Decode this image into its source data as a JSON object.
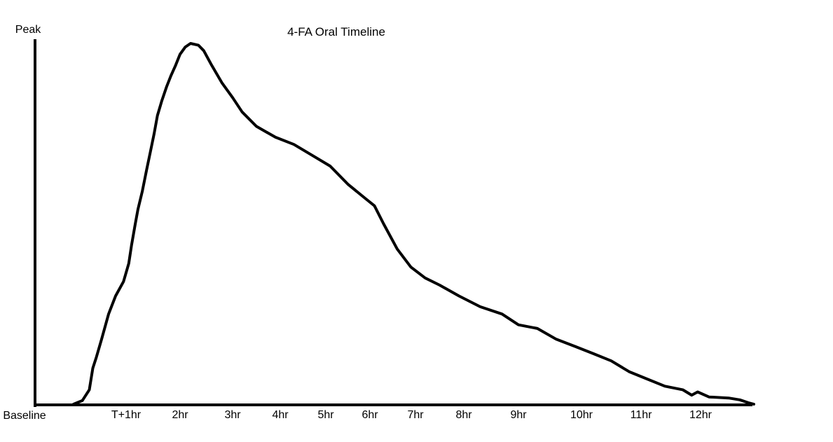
{
  "chart_data": {
    "type": "line",
    "title": "4-FA Oral Timeline",
    "ylabel_top": "Peak",
    "ylabel_bottom": "Baseline",
    "xlabel": "",
    "ylim": [
      0,
      100
    ],
    "grid": false,
    "legend": "none",
    "line_color": "#000000",
    "tick_labels": [
      "T+1hr",
      "2hr",
      "3hr",
      "4hr",
      "5hr",
      "6hr",
      "7hr",
      "8hr",
      "9hr",
      "10hr",
      "11hr",
      "12hr"
    ],
    "tick_hours": [
      1,
      2,
      3,
      4,
      5,
      6,
      7,
      8,
      9,
      10,
      11,
      12
    ],
    "series": [
      {
        "points": [
          [
            0.4,
            0
          ],
          [
            0.5,
            1
          ],
          [
            0.58,
            4
          ],
          [
            0.62,
            10
          ],
          [
            0.66,
            13
          ],
          [
            0.72,
            18
          ],
          [
            0.8,
            25
          ],
          [
            0.88,
            30
          ],
          [
            0.97,
            34
          ],
          [
            1.05,
            39
          ],
          [
            1.1,
            44
          ],
          [
            1.17,
            50
          ],
          [
            1.22,
            54
          ],
          [
            1.3,
            59
          ],
          [
            1.38,
            65
          ],
          [
            1.45,
            70
          ],
          [
            1.52,
            75
          ],
          [
            1.58,
            80
          ],
          [
            1.66,
            84
          ],
          [
            1.75,
            88
          ],
          [
            1.83,
            91
          ],
          [
            1.92,
            94
          ],
          [
            2.0,
            97
          ],
          [
            2.1,
            99
          ],
          [
            2.2,
            100
          ],
          [
            2.35,
            99.5
          ],
          [
            2.45,
            98
          ],
          [
            2.6,
            94
          ],
          [
            2.8,
            89
          ],
          [
            3.0,
            85
          ],
          [
            3.2,
            81
          ],
          [
            3.5,
            77
          ],
          [
            3.9,
            74
          ],
          [
            4.3,
            72
          ],
          [
            4.7,
            69
          ],
          [
            5.1,
            66
          ],
          [
            5.5,
            61
          ],
          [
            5.9,
            57
          ],
          [
            6.1,
            55
          ],
          [
            6.3,
            50
          ],
          [
            6.6,
            43
          ],
          [
            6.9,
            38
          ],
          [
            7.2,
            35
          ],
          [
            7.5,
            33
          ],
          [
            7.9,
            30
          ],
          [
            8.3,
            27
          ],
          [
            8.7,
            25
          ],
          [
            9.0,
            22
          ],
          [
            9.3,
            21
          ],
          [
            9.6,
            18
          ],
          [
            9.9,
            16
          ],
          [
            10.2,
            14
          ],
          [
            10.5,
            12
          ],
          [
            10.8,
            9
          ],
          [
            11.1,
            7
          ],
          [
            11.4,
            5
          ],
          [
            11.7,
            4
          ],
          [
            11.85,
            2.5
          ],
          [
            11.95,
            3.4
          ],
          [
            12.15,
            2
          ],
          [
            12.5,
            1.7
          ],
          [
            12.7,
            1.2
          ],
          [
            12.85,
            0.4
          ],
          [
            12.95,
            0
          ]
        ]
      }
    ]
  }
}
